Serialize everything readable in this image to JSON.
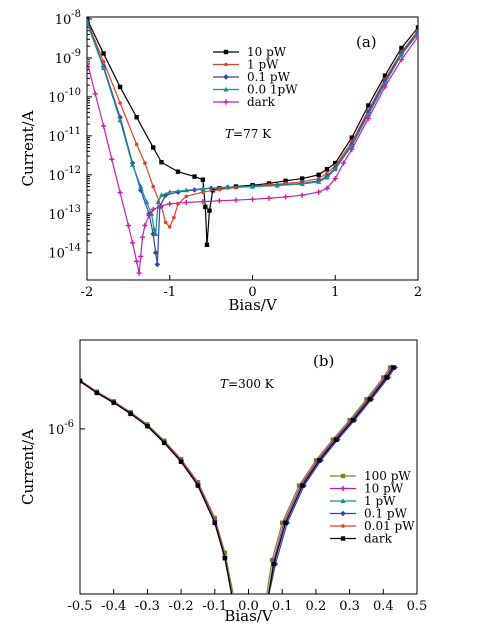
{
  "chart_data": [
    {
      "panel": "(a)",
      "type": "line",
      "annotation": "T=77 K",
      "annotation_italic": "T",
      "annotation_rest": "=77 K",
      "xlabel": "Bias/V",
      "ylabel": "Current/A",
      "xlim": [
        -2,
        2
      ],
      "ylim_log10": [
        -14.7,
        -7.95
      ],
      "yscale": "log",
      "xticks": [
        -2,
        -1,
        0,
        1,
        2
      ],
      "xtick_labels": [
        "-2",
        "-1",
        "0",
        "1",
        "2"
      ],
      "yticks_log10": [
        -8,
        -9,
        -10,
        -11,
        -12,
        -13,
        -14
      ],
      "ytick_labels": [
        {
          "base": "10",
          "exp": "-8"
        },
        {
          "base": "10",
          "exp": "-9"
        },
        {
          "base": "10",
          "exp": "-10"
        },
        {
          "base": "10",
          "exp": "-11"
        },
        {
          "base": "10",
          "exp": "-12"
        },
        {
          "base": "10",
          "exp": "-13"
        },
        {
          "base": "10",
          "exp": "-14"
        }
      ],
      "legend_position": "top-right",
      "series": [
        {
          "name": "10 pW",
          "color": "#000000",
          "marker": "square",
          "x": [
            -2.0,
            -1.8,
            -1.6,
            -1.4,
            -1.2,
            -1.1,
            -0.9,
            -0.7,
            -0.6,
            -0.57,
            -0.55,
            -0.52,
            -0.48,
            -0.4,
            -0.2,
            0.0,
            0.2,
            0.4,
            0.6,
            0.8,
            0.9,
            1.0,
            1.2,
            1.4,
            1.6,
            1.8,
            2.0
          ],
          "y": [
            1e-08,
            1.3e-09,
            1.8e-10,
            3e-11,
            5e-12,
            2.1e-12,
            1.2e-12,
            9e-13,
            7.5e-13,
            1.5e-13,
            1.6e-14,
            1.2e-13,
            4e-13,
            4.5e-13,
            5e-13,
            5.4e-13,
            6e-13,
            7e-13,
            8e-13,
            1e-12,
            1.4e-12,
            2e-12,
            9e-12,
            6e-11,
            3.5e-10,
            1.8e-09,
            6e-09
          ]
        },
        {
          "name": "1 pW",
          "color": "#e8401c",
          "marker": "dot",
          "x": [
            -2.0,
            -1.8,
            -1.6,
            -1.4,
            -1.3,
            -1.2,
            -1.1,
            -1.05,
            -1.0,
            -0.95,
            -0.9,
            -0.8,
            -0.6,
            -0.4,
            -0.2,
            0.0,
            0.2,
            0.4,
            0.6,
            0.8,
            0.9,
            1.0,
            1.2,
            1.4,
            1.6,
            1.8,
            2.0
          ],
          "y": [
            9e-09,
            8e-10,
            7e-11,
            6e-12,
            2e-12,
            5e-13,
            1.5e-13,
            6e-14,
            4.6e-14,
            8e-14,
            1.8e-13,
            2.8e-13,
            3.6e-13,
            4.2e-13,
            4.7e-13,
            5.1e-13,
            5.5e-13,
            6e-13,
            6.6e-13,
            8e-13,
            1.1e-12,
            1.7e-12,
            7e-12,
            4.5e-11,
            2.8e-10,
            1.4e-09,
            5e-09
          ]
        },
        {
          "name": "0.1 pW",
          "color": "#2f46b4",
          "marker": "diamond",
          "x": [
            -2.0,
            -1.8,
            -1.6,
            -1.45,
            -1.35,
            -1.25,
            -1.2,
            -1.17,
            -1.15,
            -1.12,
            -1.05,
            -0.9,
            -0.7,
            -0.5,
            -0.3,
            0.0,
            0.3,
            0.6,
            0.8,
            0.9,
            1.0,
            1.2,
            1.4,
            1.6,
            1.8,
            2.0
          ],
          "y": [
            8.5e-09,
            6e-10,
            3e-11,
            2e-12,
            4e-13,
            1e-13,
            3e-14,
            1e-14,
            5e-15,
            1.5e-13,
            3e-13,
            3.6e-13,
            4.1e-13,
            4.5e-13,
            4.8e-13,
            5e-13,
            5.4e-13,
            6e-13,
            7e-13,
            9e-13,
            1.5e-12,
            6e-12,
            4e-11,
            2.5e-10,
            1.3e-09,
            4.5e-09
          ]
        },
        {
          "name": "0.0 1pW",
          "color": "#178f8f",
          "marker": "triangle",
          "x": [
            -2.0,
            -1.8,
            -1.6,
            -1.45,
            -1.35,
            -1.28,
            -1.22,
            -1.19,
            -1.17,
            -1.14,
            -1.1,
            -1.0,
            -0.8,
            -0.6,
            -0.3,
            0.0,
            0.3,
            0.6,
            0.8,
            0.9,
            1.0,
            1.2,
            1.4,
            1.6,
            1.8,
            2.0
          ],
          "y": [
            8e-09,
            5.5e-10,
            2.5e-11,
            1.8e-12,
            5e-13,
            2e-13,
            1e-13,
            4e-14,
            3e-14,
            2e-13,
            3e-13,
            3.6e-13,
            4e-13,
            4.4e-13,
            4.8e-13,
            5e-13,
            5.3e-13,
            5.8e-13,
            6.6e-13,
            8.5e-13,
            1.4e-12,
            5.5e-12,
            3.5e-11,
            2.2e-10,
            1.2e-09,
            4.2e-09
          ]
        },
        {
          "name": "dark",
          "color": "#c21fb0",
          "marker": "star",
          "x": [
            -2.0,
            -1.9,
            -1.8,
            -1.7,
            -1.6,
            -1.5,
            -1.45,
            -1.4,
            -1.37,
            -1.35,
            -1.33,
            -1.3,
            -1.25,
            -1.2,
            -1.1,
            -1.0,
            -0.8,
            -0.6,
            -0.4,
            -0.2,
            0.0,
            0.2,
            0.4,
            0.6,
            0.8,
            0.9,
            1.0,
            1.1,
            1.2,
            1.4,
            1.6,
            1.8,
            2.0
          ],
          "y": [
            8e-10,
            1.2e-10,
            1.8e-11,
            2.5e-12,
            3.5e-13,
            5e-14,
            1.8e-14,
            6e-15,
            3e-15,
            8e-15,
            2.5e-14,
            5e-14,
            9e-14,
            1.3e-13,
            1.6e-13,
            1.8e-13,
            1.95e-13,
            2.05e-13,
            2.15e-13,
            2.25e-13,
            2.35e-13,
            2.5e-13,
            2.7e-13,
            3e-13,
            3.6e-13,
            4.5e-13,
            8e-13,
            2e-12,
            4.5e-12,
            2.8e-11,
            1.8e-10,
            9e-10,
            3.5e-09
          ]
        }
      ]
    },
    {
      "panel": "(b)",
      "type": "line",
      "annotation": "T=300 K",
      "annotation_italic": "T",
      "annotation_rest": "=300 K",
      "xlabel": "Bias/V",
      "ylabel": "Current/A",
      "xlim": [
        -0.5,
        0.5
      ],
      "ylim_log10": [
        -6.78,
        -5.58
      ],
      "yscale": "log",
      "xticks": [
        -0.5,
        -0.4,
        -0.3,
        -0.2,
        -0.1,
        0.0,
        0.1,
        0.2,
        0.3,
        0.4,
        0.5
      ],
      "xtick_labels": [
        "-0.5",
        "-0.4",
        "-0.3",
        "-0.2",
        "-0.1",
        "0.0",
        "0.1",
        "0.2",
        "0.3",
        "0.4",
        "0.5"
      ],
      "yticks_log10": [
        -6
      ],
      "ytick_labels": [
        {
          "base": "10",
          "exp": "-6"
        }
      ],
      "legend_position": "right",
      "series": [
        {
          "name": "100 pW",
          "color": "#6e8a1e",
          "marker": "square",
          "x": [
            -0.5,
            -0.45,
            -0.4,
            -0.35,
            -0.3,
            -0.25,
            -0.2,
            -0.15,
            -0.1,
            -0.07,
            -0.04,
            0.05,
            0.07,
            0.1,
            0.15,
            0.2,
            0.25,
            0.3,
            0.35,
            0.4,
            0.42
          ],
          "y": [
            1.7e-06,
            1.5e-06,
            1.35e-06,
            1.2e-06,
            1.05e-06,
            8.8e-07,
            7.2e-07,
            5.6e-07,
            3.8e-07,
            2.6e-07,
            1.5e-07,
            1.5e-07,
            2.4e-07,
            3.6e-07,
            5.4e-07,
            7.1e-07,
            8.9e-07,
            1.1e-06,
            1.38e-06,
            1.75e-06,
            1.95e-06
          ]
        },
        {
          "name": "10 pW",
          "color": "#b01fb0",
          "marker": "star",
          "x": [
            -0.5,
            -0.45,
            -0.4,
            -0.35,
            -0.3,
            -0.25,
            -0.2,
            -0.15,
            -0.1,
            -0.07,
            -0.045,
            0.055,
            0.075,
            0.105,
            0.155,
            0.205,
            0.255,
            0.305,
            0.355,
            0.405,
            0.425
          ],
          "y": [
            1.69e-06,
            1.49e-06,
            1.34e-06,
            1.19e-06,
            1.04e-06,
            8.7e-07,
            7.1e-07,
            5.5e-07,
            3.7e-07,
            2.5e-07,
            1.5e-07,
            1.5e-07,
            2.4e-07,
            3.6e-07,
            5.4e-07,
            7.1e-07,
            8.9e-07,
            1.1e-06,
            1.38e-06,
            1.75e-06,
            1.95e-06
          ]
        },
        {
          "name": "1 pW",
          "color": "#178f8f",
          "marker": "triangle",
          "x": [
            -0.5,
            -0.45,
            -0.4,
            -0.35,
            -0.3,
            -0.25,
            -0.2,
            -0.15,
            -0.1,
            -0.07,
            -0.045,
            0.055,
            0.075,
            0.11,
            0.16,
            0.21,
            0.26,
            0.31,
            0.36,
            0.41,
            0.43
          ],
          "y": [
            1.68e-06,
            1.48e-06,
            1.33e-06,
            1.18e-06,
            1.03e-06,
            8.6e-07,
            7e-07,
            5.4e-07,
            3.6e-07,
            2.45e-07,
            1.5e-07,
            1.5e-07,
            2.3e-07,
            3.6e-07,
            5.4e-07,
            7.1e-07,
            8.9e-07,
            1.1e-06,
            1.38e-06,
            1.75e-06,
            1.95e-06
          ]
        },
        {
          "name": "0.1 pW",
          "color": "#2f46b4",
          "marker": "diamond",
          "x": [
            -0.5,
            -0.45,
            -0.4,
            -0.35,
            -0.3,
            -0.25,
            -0.2,
            -0.15,
            -0.1,
            -0.07,
            -0.045,
            0.055,
            0.08,
            0.115,
            0.165,
            0.215,
            0.265,
            0.315,
            0.365,
            0.415,
            0.435
          ],
          "y": [
            1.68e-06,
            1.48e-06,
            1.33e-06,
            1.18e-06,
            1.03e-06,
            8.6e-07,
            7e-07,
            5.4e-07,
            3.6e-07,
            2.45e-07,
            1.5e-07,
            1.5e-07,
            2.3e-07,
            3.6e-07,
            5.4e-07,
            7.1e-07,
            8.9e-07,
            1.1e-06,
            1.38e-06,
            1.75e-06,
            1.95e-06
          ]
        },
        {
          "name": "0.01 pW",
          "color": "#e8401c",
          "marker": "dot",
          "x": [
            -0.5,
            -0.45,
            -0.4,
            -0.35,
            -0.3,
            -0.25,
            -0.2,
            -0.15,
            -0.1,
            -0.07,
            -0.045,
            0.055,
            0.075,
            0.11,
            0.16,
            0.21,
            0.26,
            0.31,
            0.36,
            0.41,
            0.43
          ],
          "y": [
            1.68e-06,
            1.48e-06,
            1.33e-06,
            1.18e-06,
            1.03e-06,
            8.6e-07,
            7e-07,
            5.4e-07,
            3.6e-07,
            2.45e-07,
            1.5e-07,
            1.5e-07,
            2.3e-07,
            3.6e-07,
            5.4e-07,
            7.1e-07,
            8.9e-07,
            1.1e-06,
            1.38e-06,
            1.75e-06,
            1.95e-06
          ]
        },
        {
          "name": "dark",
          "color": "#000000",
          "marker": "square",
          "x": [
            -0.5,
            -0.45,
            -0.4,
            -0.35,
            -0.3,
            -0.25,
            -0.2,
            -0.15,
            -0.1,
            -0.07,
            -0.045,
            0.055,
            0.075,
            0.11,
            0.16,
            0.21,
            0.26,
            0.31,
            0.36,
            0.41,
            0.43
          ],
          "y": [
            1.68e-06,
            1.48e-06,
            1.33e-06,
            1.18e-06,
            1.03e-06,
            8.6e-07,
            7e-07,
            5.4e-07,
            3.6e-07,
            2.45e-07,
            1.5e-07,
            1.5e-07,
            2.3e-07,
            3.6e-07,
            5.4e-07,
            7.1e-07,
            8.9e-07,
            1.1e-06,
            1.38e-06,
            1.75e-06,
            1.95e-06
          ]
        }
      ]
    }
  ]
}
